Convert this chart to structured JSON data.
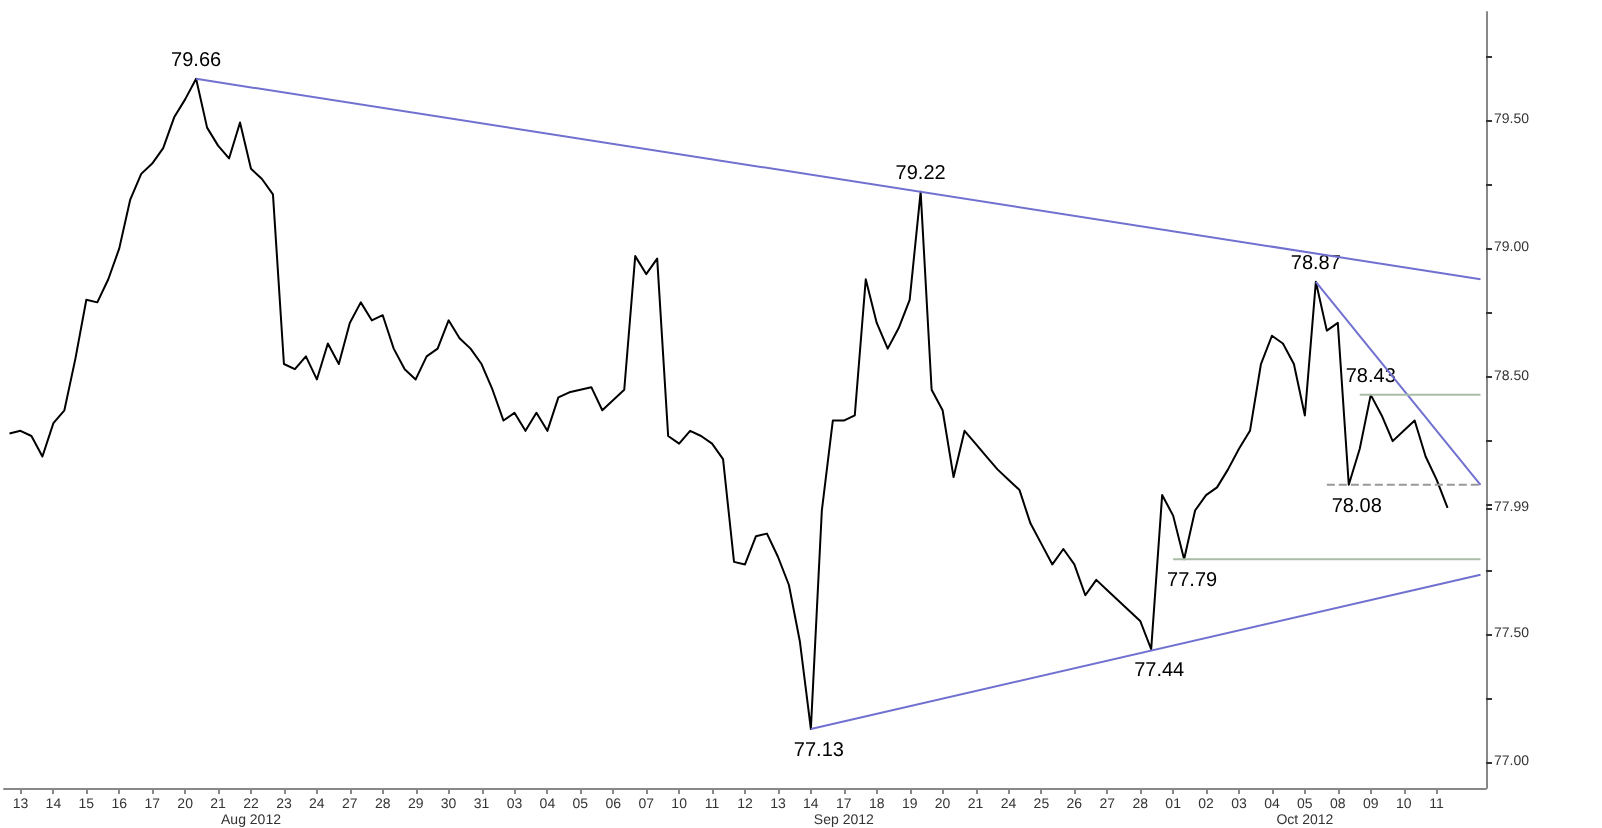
{
  "chart_data": {
    "type": "line",
    "categories": [
      null,
      "13",
      null,
      null,
      "14",
      null,
      null,
      "15",
      null,
      null,
      "16",
      null,
      null,
      "17",
      null,
      null,
      "20",
      null,
      null,
      "21",
      null,
      null,
      "22",
      null,
      null,
      "23",
      null,
      null,
      "24",
      null,
      null,
      "27",
      null,
      null,
      "28",
      null,
      null,
      "29",
      null,
      null,
      "30",
      null,
      null,
      "31",
      null,
      null,
      "03",
      null,
      null,
      "04",
      null,
      null,
      "05",
      null,
      null,
      "06",
      null,
      null,
      "07",
      null,
      null,
      "10",
      null,
      null,
      "11",
      null,
      null,
      "12",
      null,
      null,
      "13",
      null,
      null,
      "14",
      null,
      null,
      "17",
      null,
      null,
      "18",
      null,
      null,
      "19",
      null,
      null,
      "20",
      null,
      null,
      "21",
      null,
      null,
      "24",
      null,
      null,
      "25",
      null,
      null,
      "26",
      null,
      null,
      "27",
      null,
      null,
      "28",
      null,
      null,
      "01",
      null,
      null,
      "02",
      null,
      null,
      "03",
      null,
      null,
      "04",
      null,
      null,
      "05",
      null,
      null,
      "08",
      null,
      null,
      "09",
      null,
      null,
      "10",
      null,
      null,
      "11",
      null,
      null,
      null,
      null
    ],
    "series": [
      {
        "color": "#000000",
        "values": [
          78.28,
          78.29,
          78.27,
          78.19,
          78.32,
          78.37,
          78.57,
          78.8,
          78.79,
          78.88,
          79.0,
          79.19,
          79.29,
          79.33,
          79.39,
          79.51,
          79.58,
          79.66,
          79.47,
          79.4,
          79.35,
          79.49,
          79.31,
          79.27,
          79.21,
          78.55,
          78.53,
          78.58,
          78.49,
          78.63,
          78.55,
          78.71,
          78.79,
          78.72,
          78.74,
          78.61,
          78.53,
          78.49,
          78.58,
          78.61,
          78.72,
          78.65,
          78.61,
          78.55,
          78.45,
          78.33,
          78.36,
          78.29,
          78.36,
          78.29,
          78.42,
          78.44,
          78.45,
          78.46,
          78.37,
          78.41,
          78.45,
          78.97,
          78.9,
          78.96,
          78.27,
          78.24,
          78.29,
          78.27,
          78.24,
          78.18,
          77.78,
          77.77,
          77.88,
          77.89,
          77.8,
          77.69,
          77.47,
          77.13,
          77.98,
          78.33,
          78.33,
          78.35,
          78.88,
          78.71,
          78.61,
          78.69,
          78.8,
          79.22,
          78.45,
          78.37,
          78.11,
          78.29,
          78.24,
          78.19,
          78.14,
          78.1,
          78.06,
          77.93,
          77.85,
          77.77,
          77.83,
          77.77,
          77.65,
          77.71,
          77.67,
          77.63,
          77.59,
          77.55,
          77.44,
          78.04,
          77.96,
          77.79,
          77.98,
          78.04,
          78.07,
          78.14,
          78.22,
          78.29,
          78.55,
          78.66,
          78.63,
          78.55,
          78.35,
          78.87,
          78.68,
          78.71,
          78.08,
          78.22,
          78.43,
          78.35,
          78.25,
          78.29,
          78.33,
          78.19,
          78.1,
          77.99,
          null,
          null,
          null
        ]
      },
      {
        "type": "line",
        "color": "#7070d0",
        "values": [
          null,
          null,
          null,
          null,
          null,
          null,
          null,
          null,
          null,
          null,
          null,
          null,
          null,
          null,
          null,
          null,
          null,
          79.66,
          null,
          null,
          null,
          null,
          null,
          null,
          null,
          null,
          null,
          null,
          null,
          null,
          null,
          null,
          null,
          null,
          null,
          null,
          null,
          null,
          null,
          null,
          null,
          null,
          null,
          null,
          null,
          null,
          null,
          null,
          null,
          null,
          null,
          null,
          null,
          null,
          null,
          null,
          null,
          null,
          null,
          null,
          null,
          null,
          null,
          null,
          null,
          null,
          null,
          null,
          null,
          null,
          null,
          null,
          null,
          null,
          null,
          null,
          null,
          null,
          null,
          null,
          null,
          null,
          null,
          null,
          null,
          null,
          null,
          null,
          null,
          null,
          null,
          null,
          null,
          null,
          null,
          null,
          null,
          null,
          null,
          null,
          null,
          null,
          null,
          null,
          null,
          null,
          null,
          null,
          null,
          null,
          null,
          null,
          null,
          null,
          null,
          null,
          null,
          null,
          null,
          null,
          null,
          null,
          null,
          null,
          null,
          null,
          null,
          null,
          null,
          null,
          null,
          null,
          null,
          null,
          78.88
        ]
      },
      {
        "type": "line",
        "color": "#7070d0",
        "values": [
          null,
          null,
          null,
          null,
          null,
          null,
          null,
          null,
          null,
          null,
          null,
          null,
          null,
          null,
          null,
          null,
          null,
          null,
          null,
          null,
          null,
          null,
          null,
          null,
          null,
          null,
          null,
          null,
          null,
          null,
          null,
          null,
          null,
          null,
          null,
          null,
          null,
          null,
          null,
          null,
          null,
          null,
          null,
          null,
          null,
          null,
          null,
          null,
          null,
          null,
          null,
          null,
          null,
          null,
          null,
          null,
          null,
          null,
          null,
          null,
          null,
          null,
          null,
          null,
          null,
          null,
          null,
          null,
          null,
          null,
          null,
          null,
          null,
          77.13,
          null,
          null,
          null,
          null,
          null,
          null,
          null,
          null,
          null,
          null,
          null,
          null,
          null,
          null,
          null,
          null,
          null,
          null,
          null,
          null,
          null,
          null,
          null,
          null,
          null,
          null,
          null,
          null,
          null,
          null,
          null,
          null,
          null,
          null,
          null,
          null,
          null,
          null,
          null,
          null,
          null,
          null,
          null,
          null,
          null,
          null,
          null,
          null,
          null,
          null,
          null,
          null,
          null,
          null,
          null,
          null,
          null,
          null,
          null,
          null,
          77.73
        ]
      },
      {
        "type": "line",
        "color": "#7070d0",
        "values": [
          null,
          null,
          null,
          null,
          null,
          null,
          null,
          null,
          null,
          null,
          null,
          null,
          null,
          null,
          null,
          null,
          null,
          null,
          null,
          null,
          null,
          null,
          null,
          null,
          null,
          null,
          null,
          null,
          null,
          null,
          null,
          null,
          null,
          null,
          null,
          null,
          null,
          null,
          null,
          null,
          null,
          null,
          null,
          null,
          null,
          null,
          null,
          null,
          null,
          null,
          null,
          null,
          null,
          null,
          null,
          null,
          null,
          null,
          null,
          null,
          null,
          null,
          null,
          null,
          null,
          null,
          null,
          null,
          null,
          null,
          null,
          null,
          null,
          null,
          null,
          null,
          null,
          null,
          null,
          null,
          null,
          null,
          null,
          null,
          null,
          null,
          null,
          null,
          null,
          null,
          null,
          null,
          null,
          null,
          null,
          null,
          null,
          null,
          null,
          null,
          null,
          null,
          null,
          null,
          null,
          null,
          null,
          null,
          null,
          null,
          null,
          null,
          null,
          null,
          null,
          null,
          null,
          null,
          null,
          78.87,
          null,
          null,
          null,
          null,
          null,
          null,
          null,
          null,
          null,
          null,
          null,
          null,
          null,
          null,
          78.08
        ]
      },
      {
        "type": "line",
        "color": "#a8bca8",
        "values": [
          null,
          null,
          null,
          null,
          null,
          null,
          null,
          null,
          null,
          null,
          null,
          null,
          null,
          null,
          null,
          null,
          null,
          null,
          null,
          null,
          null,
          null,
          null,
          null,
          null,
          null,
          null,
          null,
          null,
          null,
          null,
          null,
          null,
          null,
          null,
          null,
          null,
          null,
          null,
          null,
          null,
          null,
          null,
          null,
          null,
          null,
          null,
          null,
          null,
          null,
          null,
          null,
          null,
          null,
          null,
          null,
          null,
          null,
          null,
          null,
          null,
          null,
          null,
          null,
          null,
          null,
          null,
          null,
          null,
          null,
          null,
          null,
          null,
          null,
          null,
          null,
          null,
          null,
          null,
          null,
          null,
          null,
          null,
          null,
          null,
          null,
          null,
          null,
          null,
          null,
          null,
          null,
          null,
          null,
          null,
          null,
          null,
          null,
          null,
          null,
          null,
          null,
          null,
          null,
          null,
          null,
          null,
          null,
          null,
          null,
          null,
          null,
          null,
          null,
          null,
          null,
          null,
          null,
          null,
          null,
          null,
          null,
          null,
          78.43,
          null,
          null,
          null,
          null,
          null,
          null,
          null,
          null,
          null,
          null,
          78.43
        ]
      },
      {
        "type": "line",
        "color": "#999999",
        "line_style": "dashed",
        "values": [
          null,
          null,
          null,
          null,
          null,
          null,
          null,
          null,
          null,
          null,
          null,
          null,
          null,
          null,
          null,
          null,
          null,
          null,
          null,
          null,
          null,
          null,
          null,
          null,
          null,
          null,
          null,
          null,
          null,
          null,
          null,
          null,
          null,
          null,
          null,
          null,
          null,
          null,
          null,
          null,
          null,
          null,
          null,
          null,
          null,
          null,
          null,
          null,
          null,
          null,
          null,
          null,
          null,
          null,
          null,
          null,
          null,
          null,
          null,
          null,
          null,
          null,
          null,
          null,
          null,
          null,
          null,
          null,
          null,
          null,
          null,
          null,
          null,
          null,
          null,
          null,
          null,
          null,
          null,
          null,
          null,
          null,
          null,
          null,
          null,
          null,
          null,
          null,
          null,
          null,
          null,
          null,
          null,
          null,
          null,
          null,
          null,
          null,
          null,
          null,
          null,
          null,
          null,
          null,
          null,
          null,
          null,
          null,
          null,
          null,
          null,
          null,
          null,
          null,
          null,
          null,
          null,
          null,
          null,
          null,
          78.08,
          null,
          null,
          null,
          null,
          null,
          null,
          null,
          null,
          null,
          null,
          null,
          null,
          null,
          78.08
        ]
      },
      {
        "type": "line",
        "color": "#a8bca8",
        "values": [
          null,
          null,
          null,
          null,
          null,
          null,
          null,
          null,
          null,
          null,
          null,
          null,
          null,
          null,
          null,
          null,
          null,
          null,
          null,
          null,
          null,
          null,
          null,
          null,
          null,
          null,
          null,
          null,
          null,
          null,
          null,
          null,
          null,
          null,
          null,
          null,
          null,
          null,
          null,
          null,
          null,
          null,
          null,
          null,
          null,
          null,
          null,
          null,
          null,
          null,
          null,
          null,
          null,
          null,
          null,
          null,
          null,
          null,
          null,
          null,
          null,
          null,
          null,
          null,
          null,
          null,
          null,
          null,
          null,
          null,
          null,
          null,
          null,
          null,
          null,
          null,
          null,
          null,
          null,
          null,
          null,
          null,
          null,
          null,
          null,
          null,
          null,
          null,
          null,
          null,
          null,
          null,
          null,
          null,
          null,
          null,
          null,
          null,
          null,
          null,
          null,
          null,
          null,
          null,
          null,
          null,
          77.79,
          null,
          null,
          null,
          null,
          null,
          null,
          null,
          null,
          null,
          null,
          null,
          null,
          null,
          null,
          null,
          null,
          null,
          null,
          null,
          null,
          null,
          null,
          null,
          null,
          null,
          null,
          null,
          77.79
        ]
      }
    ],
    "ylim": [
      76.9,
      79.92
    ],
    "yticks": [
      {
        "value": 77.0,
        "label": "77.00"
      },
      {
        "value": 77.25,
        "label": null
      },
      {
        "value": 77.5,
        "label": "77.50"
      },
      {
        "value": 77.75,
        "label": null
      },
      {
        "value": 77.99,
        "label": "77.99"
      },
      {
        "value": 78.0,
        "label": null
      },
      {
        "value": 78.25,
        "label": null
      },
      {
        "value": 78.5,
        "label": "78.50"
      },
      {
        "value": 78.75,
        "label": null
      },
      {
        "value": 79.0,
        "label": "79.00"
      },
      {
        "value": 79.25,
        "label": null
      },
      {
        "value": 79.5,
        "label": "79.50"
      },
      {
        "value": 79.75,
        "label": null
      }
    ],
    "annotations": [
      "Aug 2012",
      "Sep 2012",
      "Oct 2012",
      {
        "text": "79.66",
        "y": 79.66
      },
      {
        "text": "79.22",
        "y": 79.22
      },
      {
        "text": "78.87",
        "y": 78.87
      },
      {
        "text": "78.43",
        "y": 78.43
      },
      {
        "text": "78.08",
        "y": 78.08
      },
      {
        "text": "77.79",
        "y": 77.79
      },
      {
        "text": "77.44",
        "y": 77.44
      },
      {
        "text": "77.13",
        "y": 77.13
      }
    ],
    "grid": false
  }
}
